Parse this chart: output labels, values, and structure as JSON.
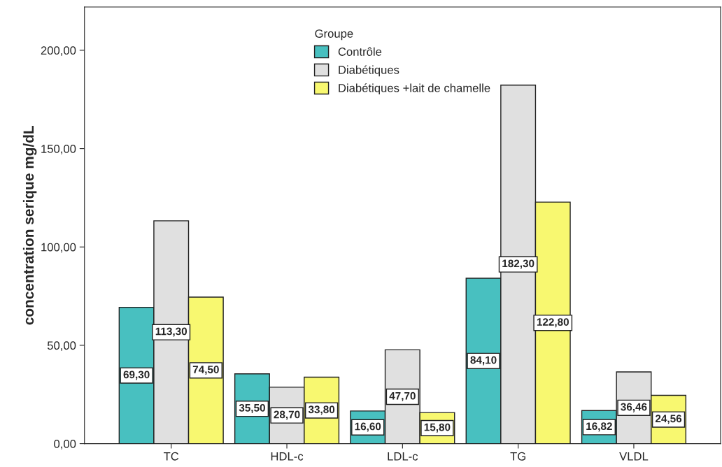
{
  "chart_data": {
    "type": "bar",
    "ylabel": "concentration serique mg/dL",
    "legend_title": "Groupe",
    "categories": [
      "TC",
      "HDL-c",
      "LDL-c",
      "TG",
      "VLDL"
    ],
    "series": [
      {
        "name": "Contrôle",
        "color": "#48c0c0",
        "values": [
          69.3,
          35.5,
          16.6,
          84.1,
          16.82
        ],
        "value_labels": [
          "69,30",
          "35,50",
          "16,60",
          "84,10",
          "16,82"
        ]
      },
      {
        "name": "Diabétiques",
        "color": "#e0e0e0",
        "values": [
          113.3,
          28.7,
          47.7,
          182.3,
          36.46
        ],
        "value_labels": [
          "113,30",
          "28,70",
          "47,70",
          "182,30",
          "36,46"
        ]
      },
      {
        "name": "Diabétiques +lait de chamelle",
        "color": "#f8f870",
        "values": [
          74.5,
          33.8,
          15.8,
          122.8,
          24.56
        ],
        "value_labels": [
          "74,50",
          "33,80",
          "15,80",
          "122,80",
          "24,56"
        ]
      }
    ],
    "ylim": [
      0,
      222
    ],
    "yticks": [
      {
        "value": 0,
        "label": "0,00"
      },
      {
        "value": 50,
        "label": "50,00"
      },
      {
        "value": 100,
        "label": "100,00"
      },
      {
        "value": 150,
        "label": "150,00"
      },
      {
        "value": 200,
        "label": "200,00"
      }
    ],
    "grid": false,
    "legend": "top"
  }
}
